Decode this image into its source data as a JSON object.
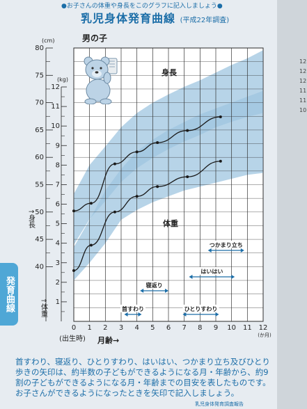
{
  "header": {
    "instruction": "●お子さんの体重や身長をこのグラフに記入しましょう●",
    "title": "乳児身体発育曲線",
    "title_note": "(平成22年調査)"
  },
  "side_tab": "発育曲線",
  "caption": "首すわり、寝返り、ひとりすわり、はいはい、つかまり立ち及びひとり歩きの矢印は、約半数の子どもができるようになる月・年齢から、約9割の子どもができるようになる月・年齢までの目安を表したものです。お子さんができるようになったときを矢印で記入しましょう。",
  "footer_note": "乳児身体発育調査報告",
  "right_page_numbers": [
    "12",
    "12",
    "12",
    "11",
    "11",
    "10"
  ],
  "chart_data": {
    "type": "line",
    "title": "男の子",
    "xlabel": "月齢→",
    "x_birth_label": "(出生時)",
    "x_unit": "(か月)",
    "x_ticks": [
      "0",
      "1",
      "2",
      "3",
      "4",
      "5",
      "6",
      "7",
      "8",
      "9",
      "10",
      "11",
      "12"
    ],
    "xlim": [
      0,
      12
    ],
    "height_axis": {
      "unit": "(cm)",
      "label": "↑身長",
      "ticks": [
        "40",
        "45",
        "50",
        "55",
        "60",
        "65",
        "70",
        "75",
        "80"
      ],
      "ylim": [
        40,
        80
      ]
    },
    "weight_axis": {
      "unit": "(kg)",
      "label": "↑体重",
      "ticks": [
        "1",
        "2",
        "3",
        "4",
        "5",
        "6",
        "7",
        "8",
        "9",
        "10",
        "11",
        "12"
      ],
      "ylim": [
        0,
        12
      ]
    },
    "band_labels": {
      "height": "身長",
      "weight": "体重"
    },
    "height_band": {
      "x": [
        0,
        1,
        2,
        3,
        4,
        5,
        6,
        7,
        8,
        9,
        10,
        11,
        12
      ],
      "lower": [
        44.0,
        48.7,
        52.0,
        55.5,
        58.0,
        59.9,
        61.5,
        62.9,
        64.1,
        65.5,
        66.5,
        67.4,
        68.1
      ],
      "upper": [
        53.3,
        58.6,
        62.0,
        65.5,
        68.1,
        70.0,
        71.5,
        72.9,
        74.1,
        75.5,
        76.9,
        78.1,
        79.6
      ]
    },
    "weight_band": {
      "x": [
        0,
        1,
        2,
        3,
        4,
        5,
        6,
        7,
        8,
        9,
        10,
        11,
        12
      ],
      "lower": [
        2.1,
        3.0,
        4.0,
        5.2,
        5.7,
        6.1,
        6.4,
        6.7,
        6.9,
        7.1,
        7.3,
        7.5,
        7.6
      ],
      "upper": [
        3.8,
        5.2,
        6.7,
        7.8,
        8.7,
        9.3,
        9.8,
        10.2,
        10.6,
        10.9,
        11.2,
        11.5,
        11.8
      ]
    },
    "series": [
      {
        "name": "身長",
        "axis": "height",
        "x": [
          0,
          1.1,
          2.6,
          4.0,
          5.3,
          7.2,
          9.3
        ],
        "y": [
          50.2,
          51.6,
          58.8,
          61.0,
          62.7,
          64.9,
          67.4
        ]
      },
      {
        "name": "体重",
        "axis": "weight",
        "x": [
          0,
          1.1,
          2.6,
          4.0,
          5.3,
          7.2,
          9.3
        ],
        "y": [
          2.6,
          3.9,
          5.6,
          6.4,
          6.9,
          7.4,
          8.2
        ]
      }
    ],
    "milestones": [
      {
        "label": "首すわり",
        "start": 3.2,
        "end": 4.3,
        "row": 0
      },
      {
        "label": "寝返り",
        "start": 4.2,
        "end": 6.0,
        "row": 1
      },
      {
        "label": "ひとりすわり",
        "start": 6.9,
        "end": 9.2,
        "row": 0
      },
      {
        "label": "はいはい",
        "start": 7.3,
        "end": 10.2,
        "row": 2
      },
      {
        "label": "つかまり立ち",
        "start": 8.5,
        "end": 10.8,
        "row": 3
      }
    ],
    "grid": true
  }
}
